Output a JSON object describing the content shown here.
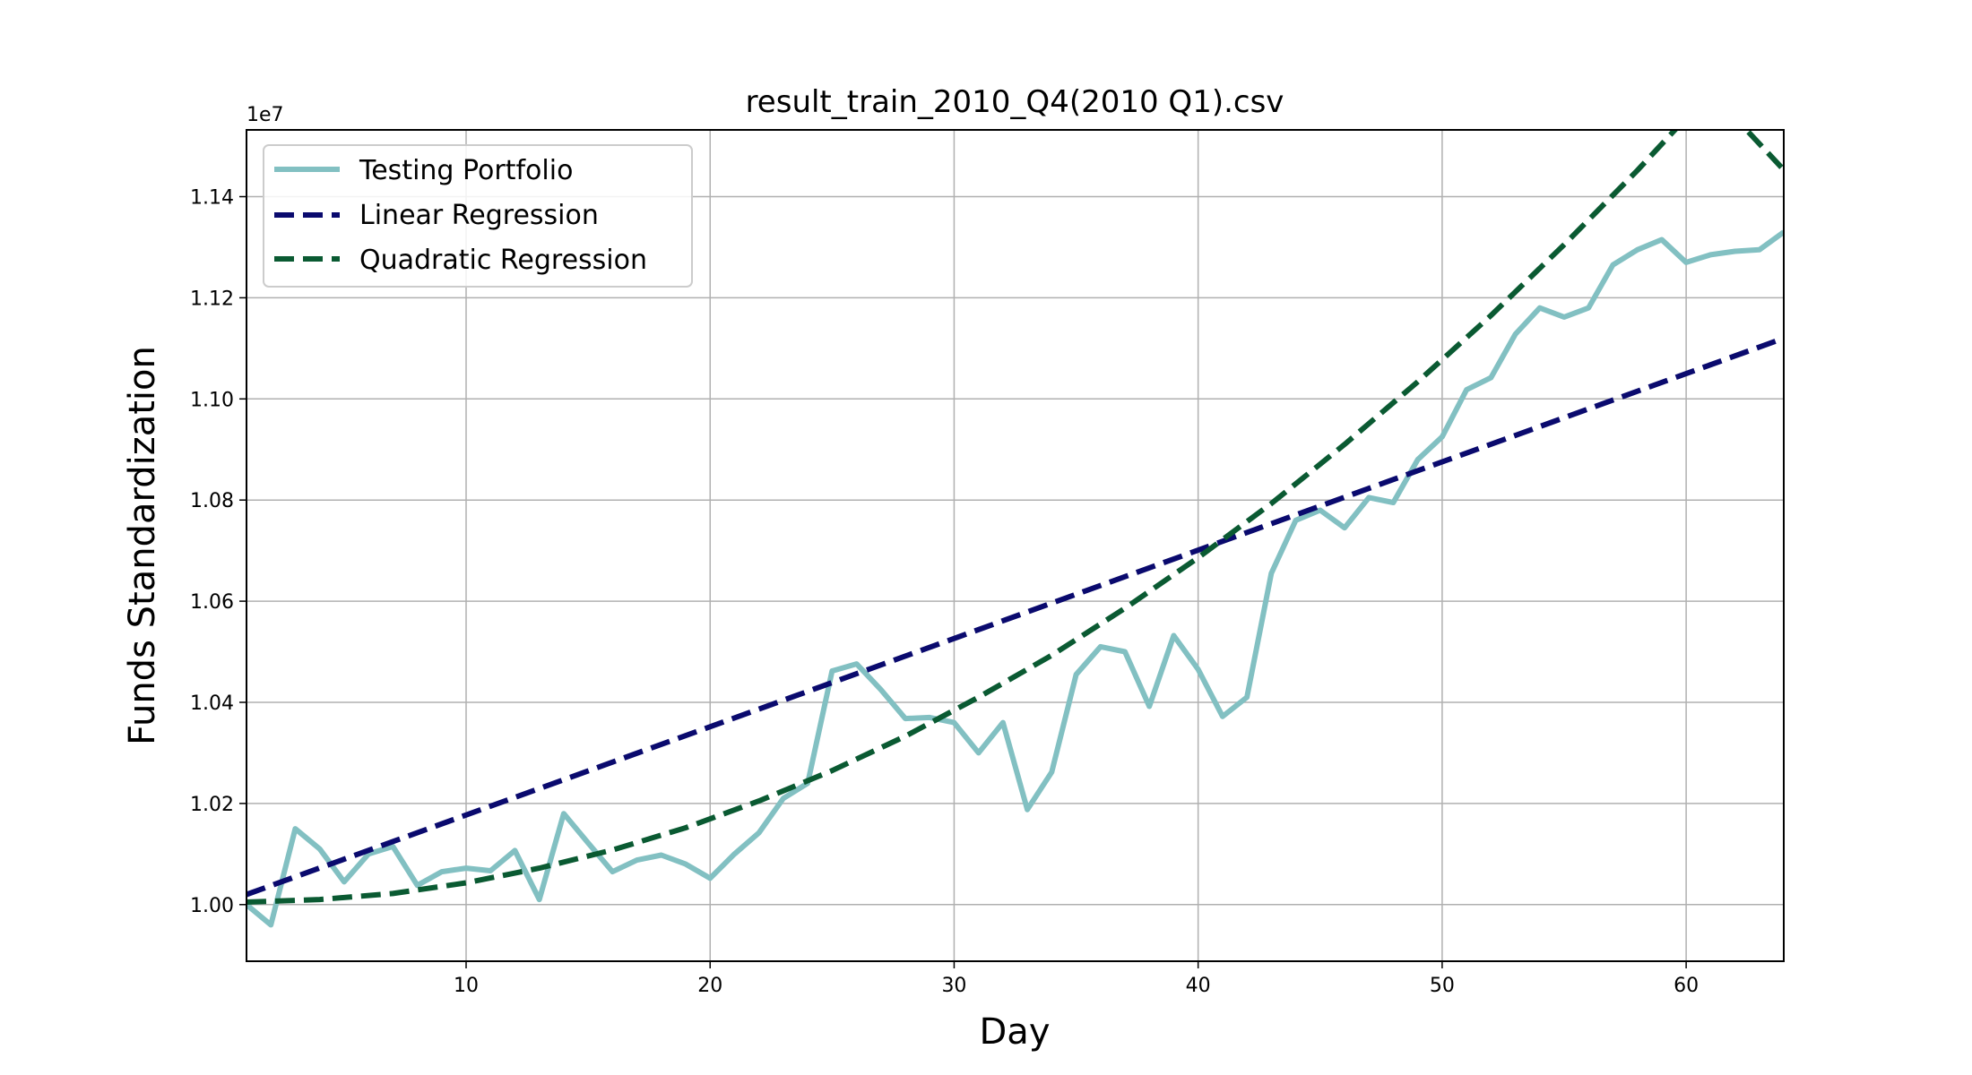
{
  "chart_data": {
    "type": "line",
    "title": "result_train_2010_Q4(2010 Q1).csv",
    "xlabel": "Day",
    "ylabel": "Funds Standardization",
    "offset_label": "1e7",
    "xlim": [
      1,
      64
    ],
    "ylim": [
      0.9888,
      1.1532
    ],
    "xticks": [
      10,
      20,
      30,
      40,
      50,
      60
    ],
    "yticks": [
      "1.00",
      "1.02",
      "1.04",
      "1.06",
      "1.08",
      "1.10",
      "1.12",
      "1.14"
    ],
    "grid": true,
    "legend_position": "top-left",
    "series": [
      {
        "name": "Testing Portfolio",
        "color": "#82c0c2",
        "dash": "solid",
        "x": [
          1,
          2,
          3,
          4,
          5,
          6,
          7,
          8,
          9,
          10,
          11,
          12,
          13,
          14,
          15,
          16,
          17,
          18,
          19,
          20,
          21,
          22,
          23,
          24,
          25,
          26,
          27,
          28,
          29,
          30,
          31,
          32,
          33,
          34,
          35,
          36,
          37,
          38,
          39,
          40,
          41,
          42,
          43,
          44,
          45,
          46,
          47,
          48,
          49,
          50,
          51,
          52,
          53,
          54,
          55,
          56,
          57,
          58,
          59,
          60,
          61,
          62,
          63,
          64
        ],
        "y": [
          1.0,
          0.996,
          1.015,
          1.011,
          1.0045,
          1.01,
          1.0115,
          1.0038,
          1.0065,
          1.0072,
          1.0067,
          1.0107,
          1.001,
          1.018,
          1.0122,
          1.0065,
          1.0088,
          1.0098,
          1.008,
          1.0052,
          1.01,
          1.0142,
          1.021,
          1.024,
          1.0462,
          1.0476,
          1.0425,
          1.0368,
          1.037,
          1.036,
          1.03,
          1.036,
          1.0188,
          1.0262,
          1.0455,
          1.051,
          1.05,
          1.0392,
          1.0532,
          1.0465,
          1.0372,
          1.041,
          1.0655,
          1.076,
          1.078,
          1.0745,
          1.0805,
          1.0795,
          1.088,
          1.0925,
          1.1018,
          1.1042,
          1.1128,
          1.118,
          1.1162,
          1.118,
          1.1265,
          1.1295,
          1.1315,
          1.127,
          1.1285,
          1.1292,
          1.1295,
          1.133
        ]
      },
      {
        "name": "Linear Regression",
        "color": "#0a0a6e",
        "dash": "dashed",
        "x": [
          1,
          64
        ],
        "y": [
          1.002,
          1.112
        ]
      },
      {
        "name": "Quadratic Regression",
        "color": "#0a5a32",
        "dash": "dashed",
        "x": [
          1,
          4,
          7,
          10,
          13,
          16,
          19,
          22,
          25,
          28,
          31,
          34,
          37,
          40,
          43,
          46,
          49,
          52,
          55,
          58,
          61,
          64
        ],
        "y": [
          1.0005,
          1.001,
          1.0022,
          1.0043,
          1.0072,
          1.0108,
          1.0152,
          1.0205,
          1.0265,
          1.0333,
          1.041,
          1.0493,
          1.0586,
          1.0686,
          1.0793,
          1.091,
          1.1034,
          1.1165,
          1.1305,
          1.1452,
          1.1608,
          1.1453
        ]
      }
    ]
  }
}
